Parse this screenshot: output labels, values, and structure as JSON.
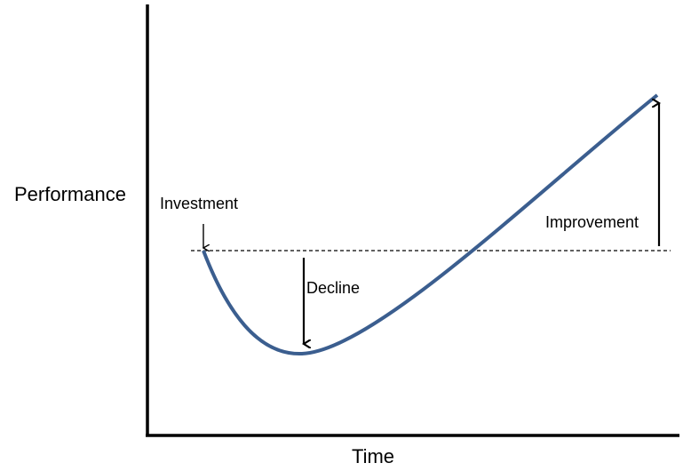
{
  "axes": {
    "y_label": "Performance",
    "x_label": "Time"
  },
  "annotations": {
    "investment": "Investment",
    "decline": "Decline",
    "improvement": "Improvement"
  }
}
